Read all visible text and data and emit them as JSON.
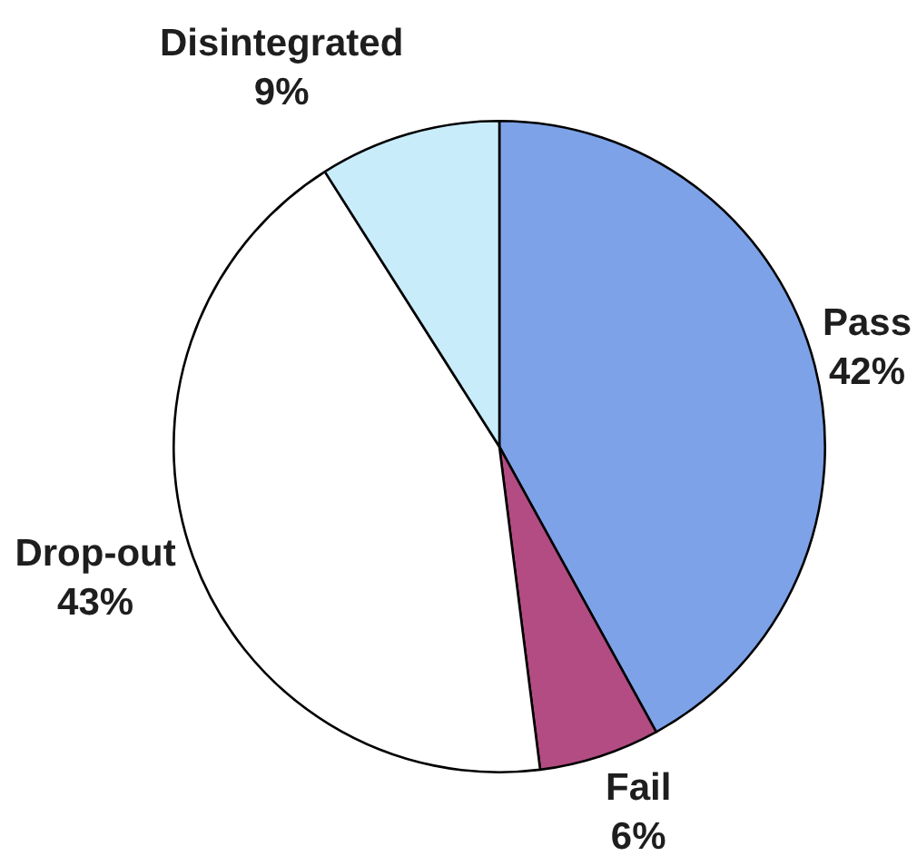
{
  "chart_data": {
    "type": "pie",
    "categories": [
      "Pass",
      "Fail",
      "Drop-out",
      "Disintegrated"
    ],
    "values": [
      42,
      6,
      43,
      9
    ],
    "colors": [
      "#7da2e8",
      "#b24c82",
      "#ffffff",
      "#c9ecfb"
    ],
    "value_labels": [
      "42%",
      "6%",
      "43%",
      "9%"
    ]
  }
}
